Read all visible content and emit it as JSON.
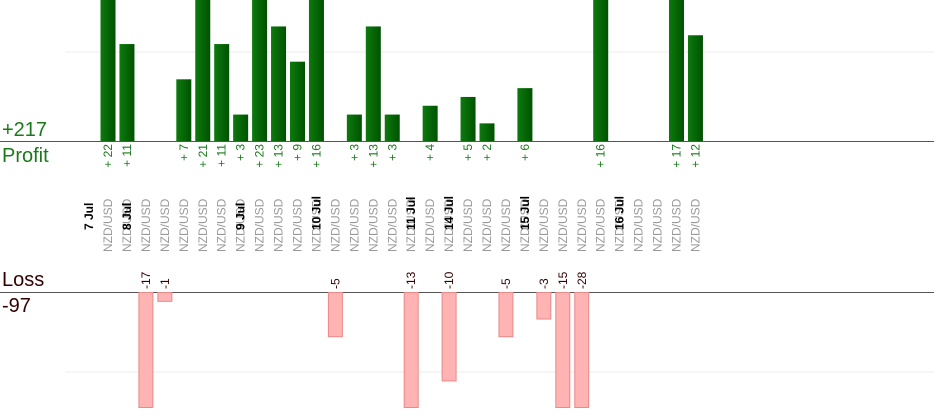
{
  "summary": {
    "profit_total": "+217",
    "profit_label": "Profit",
    "loss_label": "Loss",
    "loss_total": "-97"
  },
  "colors": {
    "profit_bar": "#0b6b0b",
    "profit_bar_dark": "#004c00",
    "profit_text": "#1a7a1a",
    "loss_bar": "#ffb3b3",
    "loss_bar_border": "#e68a8a",
    "loss_text": "#330000",
    "pair_text": "#999999",
    "date_text": "#000000",
    "axis": "#555555",
    "grid": "#eeeeee"
  },
  "chart_data": {
    "type": "bar",
    "date_labels": [
      "7 Jul",
      "8 Jul",
      "9 Jul",
      "10 Jul",
      "11 Jul",
      "14 Jul",
      "15 Jul",
      "16 Jul"
    ],
    "trades": [
      {
        "date": "7 Jul",
        "pair": "NZD/USD",
        "profit": 22,
        "label": "+22"
      },
      {
        "date": "7 Jul",
        "pair": "NZD/USD",
        "profit": 11,
        "label": "+11"
      },
      {
        "date": "8 Jul",
        "pair": "NZD/USD",
        "profit": -17,
        "label": "-17"
      },
      {
        "date": "8 Jul",
        "pair": "NZD/USD",
        "profit": -1,
        "label": "-1"
      },
      {
        "date": "8 Jul",
        "pair": "NZD/USD",
        "profit": 7,
        "label": "+7"
      },
      {
        "date": "8 Jul",
        "pair": "NZD/USD",
        "profit": 21,
        "label": "+21"
      },
      {
        "date": "8 Jul",
        "pair": "NZD/USD",
        "profit": 11,
        "label": "+11"
      },
      {
        "date": "8 Jul",
        "pair": "NZD/USD",
        "profit": 3,
        "label": "+3"
      },
      {
        "date": "9 Jul",
        "pair": "NZD/USD",
        "profit": 23,
        "label": "+23"
      },
      {
        "date": "9 Jul",
        "pair": "NZD/USD",
        "profit": 13,
        "label": "+13"
      },
      {
        "date": "9 Jul",
        "pair": "NZD/USD",
        "profit": 9,
        "label": "+9"
      },
      {
        "date": "9 Jul",
        "pair": "NZD/USD",
        "profit": 16,
        "label": "+16"
      },
      {
        "date": "10 Jul",
        "pair": "NZD/USD",
        "profit": -5,
        "label": "-5"
      },
      {
        "date": "10 Jul",
        "pair": "NZD/USD",
        "profit": 3,
        "label": "+3"
      },
      {
        "date": "10 Jul",
        "pair": "NZD/USD",
        "profit": 13,
        "label": "+13"
      },
      {
        "date": "10 Jul",
        "pair": "NZD/USD",
        "profit": 3,
        "label": "+3"
      },
      {
        "date": "10 Jul",
        "pair": "NZD/USD",
        "profit": -13,
        "label": "-13"
      },
      {
        "date": "11 Jul",
        "pair": "NZD/USD",
        "profit": 4,
        "label": "+4"
      },
      {
        "date": "11 Jul",
        "pair": "NZD/USD",
        "profit": -10,
        "label": "-10"
      },
      {
        "date": "14 Jul",
        "pair": "NZD/USD",
        "profit": 5,
        "label": "+5"
      },
      {
        "date": "14 Jul",
        "pair": "NZD/USD",
        "profit": 2,
        "label": "+2"
      },
      {
        "date": "14 Jul",
        "pair": "NZD/USD",
        "profit": -5,
        "label": "-5"
      },
      {
        "date": "14 Jul",
        "pair": "NZD/USD",
        "profit": 6,
        "label": "+6"
      },
      {
        "date": "15 Jul",
        "pair": "NZD/USD",
        "profit": -3,
        "label": "-3"
      },
      {
        "date": "15 Jul",
        "pair": "NZD/USD",
        "profit": -15,
        "label": "-15"
      },
      {
        "date": "15 Jul",
        "pair": "NZD/USD",
        "profit": -28,
        "label": "-28"
      },
      {
        "date": "15 Jul",
        "pair": "NZD/USD",
        "profit": 16,
        "label": "+16"
      },
      {
        "date": "15 Jul",
        "pair": "NZD/USD",
        "profit": 0,
        "label": ""
      },
      {
        "date": "16 Jul",
        "pair": "NZD/USD",
        "profit": 0,
        "label": ""
      },
      {
        "date": "16 Jul",
        "pair": "NZD/USD",
        "profit": 0,
        "label": ""
      },
      {
        "date": "16 Jul",
        "pair": "NZD/USD",
        "profit": 17,
        "label": "+17"
      },
      {
        "date": "16 Jul",
        "pair": "NZD/USD",
        "profit": 12,
        "label": "+12"
      }
    ],
    "profit_ylim": [
      0,
      16
    ],
    "loss_ylim": [
      0,
      13
    ],
    "grid": true
  }
}
